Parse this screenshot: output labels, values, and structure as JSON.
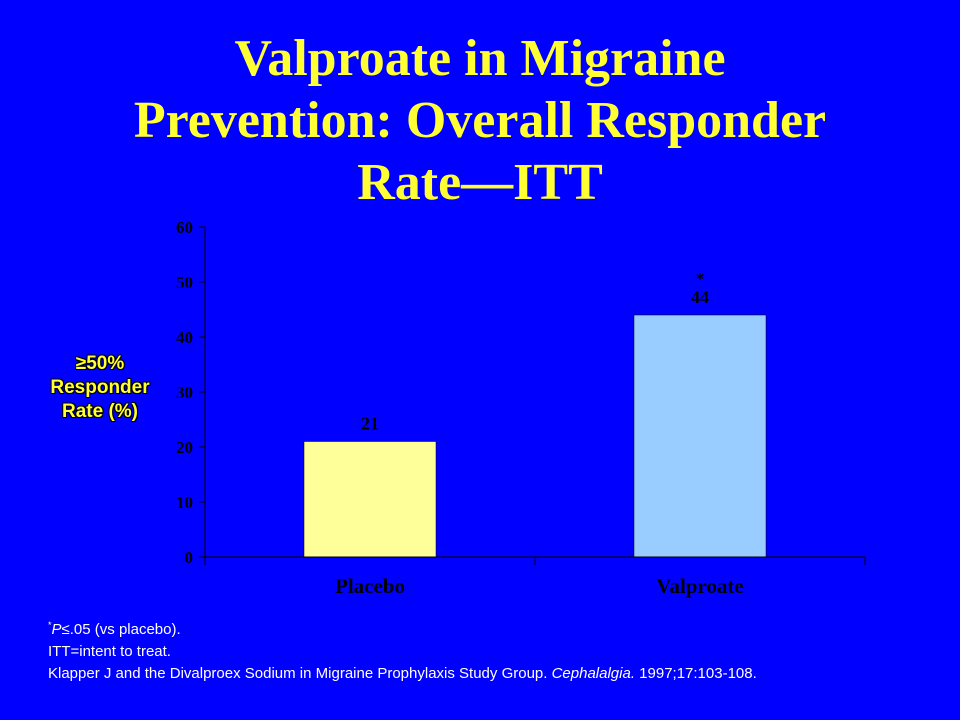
{
  "slide": {
    "title_lines": [
      "Valproate in Migraine",
      "Prevention: Overall Responder",
      "Rate—ITT"
    ]
  },
  "chart_data": {
    "type": "bar",
    "title": "",
    "ylabel_lines": [
      "≥50%",
      "Responder",
      "Rate (%)"
    ],
    "xlabel": "",
    "categories": [
      "Placebo",
      "Valproate"
    ],
    "values": [
      21,
      44
    ],
    "data_labels": [
      "21",
      "44"
    ],
    "significance_markers": [
      "",
      "*"
    ],
    "bar_colors": [
      "#ffff99",
      "#99ccff"
    ],
    "ylim": [
      0,
      60
    ],
    "yticks": [
      0,
      10,
      20,
      30,
      40,
      50,
      60
    ],
    "grid": false,
    "legend": "none"
  },
  "footnotes": {
    "sig_mark": "*",
    "sig_p": "P",
    "sig_rest": "≤.05 (vs placebo).",
    "itt": "ITT=intent to treat.",
    "ref_authors": "Klapper J and the Divalproex Sodium in Migraine Prophylaxis Study Group. ",
    "ref_journal": "Cephalalgia.",
    "ref_details": " 1997;17:103-108."
  },
  "colors": {
    "background": "#0000ff",
    "title": "#ffff33",
    "axis": "#000000",
    "text": "#ffffff"
  }
}
